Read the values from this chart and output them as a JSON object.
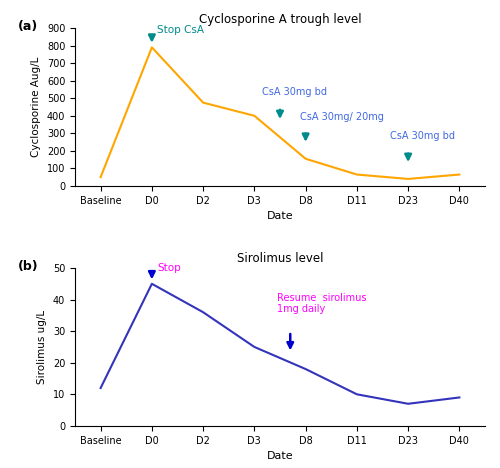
{
  "fig_width": 5.0,
  "fig_height": 4.68,
  "dpi": 100,
  "top_title": "Cyclosporine A trough level",
  "bottom_title": "Sirolimus level",
  "csa_x_labels": [
    "Baseline",
    "D0",
    "D2",
    "D3",
    "D8",
    "D11",
    "D23",
    "D40"
  ],
  "csa_x_vals": [
    0,
    1,
    2,
    3,
    4,
    5,
    6,
    7
  ],
  "csa_y_vals": [
    50,
    790,
    475,
    400,
    155,
    65,
    40,
    65
  ],
  "csa_ylim": [
    0,
    900
  ],
  "csa_yticks": [
    0,
    100,
    200,
    300,
    400,
    500,
    600,
    700,
    800,
    900
  ],
  "csa_ylabel": "Cyclosporine Aug/L",
  "csa_xlabel": "Date",
  "csa_line_color": "#FFA500",
  "csa_label": "(a)",
  "srl_x_labels": [
    "Baseline",
    "D0",
    "D2",
    "D3",
    "D8",
    "D11",
    "D23",
    "D40"
  ],
  "srl_x_vals": [
    0,
    1,
    2,
    3,
    4,
    5,
    6,
    7
  ],
  "srl_y_vals": [
    12,
    45,
    36,
    25,
    18,
    10,
    7,
    9
  ],
  "srl_ylim": [
    0,
    50
  ],
  "srl_yticks": [
    0,
    10,
    20,
    30,
    40,
    50
  ],
  "srl_ylabel": "Sirolimus ug/L",
  "srl_xlabel": "Date",
  "srl_line_color": "#3333BB",
  "srl_label": "(b)",
  "teal": "#008B8B",
  "blue_text": "#4169E1",
  "blue_arrow": "#0000CC",
  "magenta": "#FF00FF"
}
